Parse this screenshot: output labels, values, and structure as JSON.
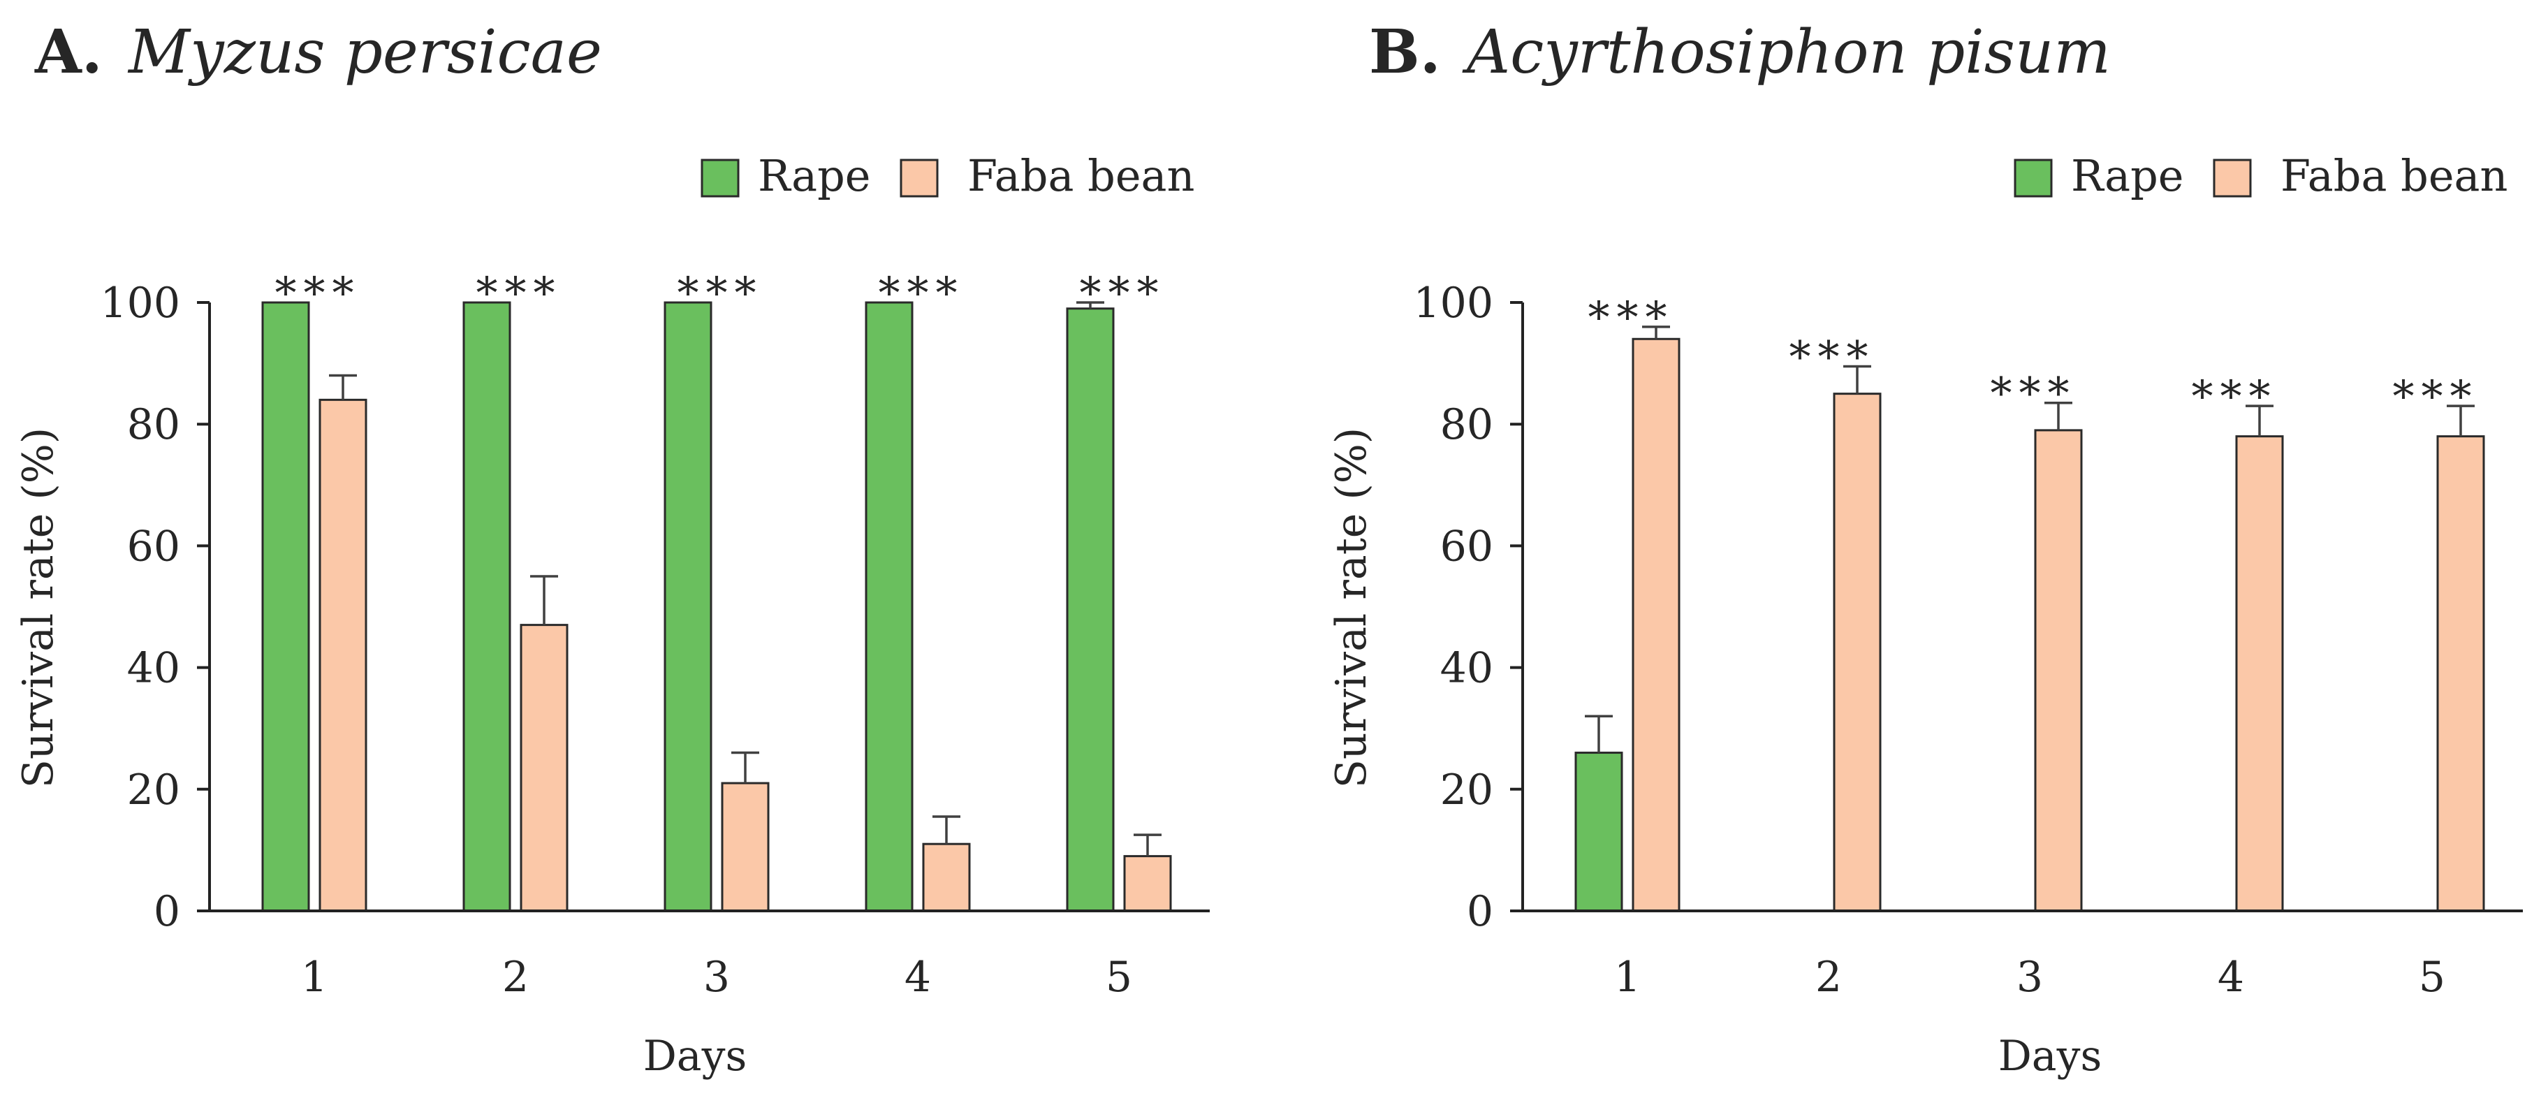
{
  "colors": {
    "rape": "#6abf5e",
    "faba": "#fbc8a8",
    "axis": "#222222",
    "text": "#262626"
  },
  "chart_data": [
    {
      "type": "bar",
      "panel_label": "A.",
      "title": "Myzus persicae",
      "xlabel": "Days",
      "ylabel": "Survival rate (%)",
      "ylim": [
        0,
        100
      ],
      "yticks": [
        0,
        20,
        40,
        60,
        80,
        100
      ],
      "categories": [
        "1",
        "2",
        "3",
        "4",
        "5"
      ],
      "legend_position": "top-right",
      "series": [
        {
          "name": "Rape",
          "color_key": "rape",
          "values": [
            100,
            100,
            100,
            100,
            99
          ],
          "errors": [
            0,
            0,
            0,
            0,
            1
          ]
        },
        {
          "name": "Faba bean",
          "color_key": "faba",
          "values": [
            84,
            47,
            21,
            11,
            9
          ],
          "errors": [
            4,
            8,
            5,
            4.5,
            3.5
          ]
        }
      ],
      "significance": [
        "***",
        "***",
        "***",
        "***",
        "***"
      ],
      "grid": false
    },
    {
      "type": "bar",
      "panel_label": "B.",
      "title": "Acyrthosiphon pisum",
      "xlabel": "Days",
      "ylabel": "Survival rate (%)",
      "ylim": [
        0,
        100
      ],
      "yticks": [
        0,
        20,
        40,
        60,
        80,
        100
      ],
      "categories": [
        "1",
        "2",
        "3",
        "4",
        "5"
      ],
      "legend_position": "top-right",
      "series": [
        {
          "name": "Rape",
          "color_key": "rape",
          "values": [
            26,
            0,
            0,
            0,
            0
          ],
          "errors": [
            6,
            0,
            0,
            0,
            0
          ]
        },
        {
          "name": "Faba bean",
          "color_key": "faba",
          "values": [
            94,
            85,
            79,
            78,
            78
          ],
          "errors": [
            2,
            4.5,
            4.5,
            5,
            5
          ]
        }
      ],
      "significance": [
        "***",
        "***",
        "***",
        "***",
        "***"
      ],
      "grid": false
    }
  ]
}
